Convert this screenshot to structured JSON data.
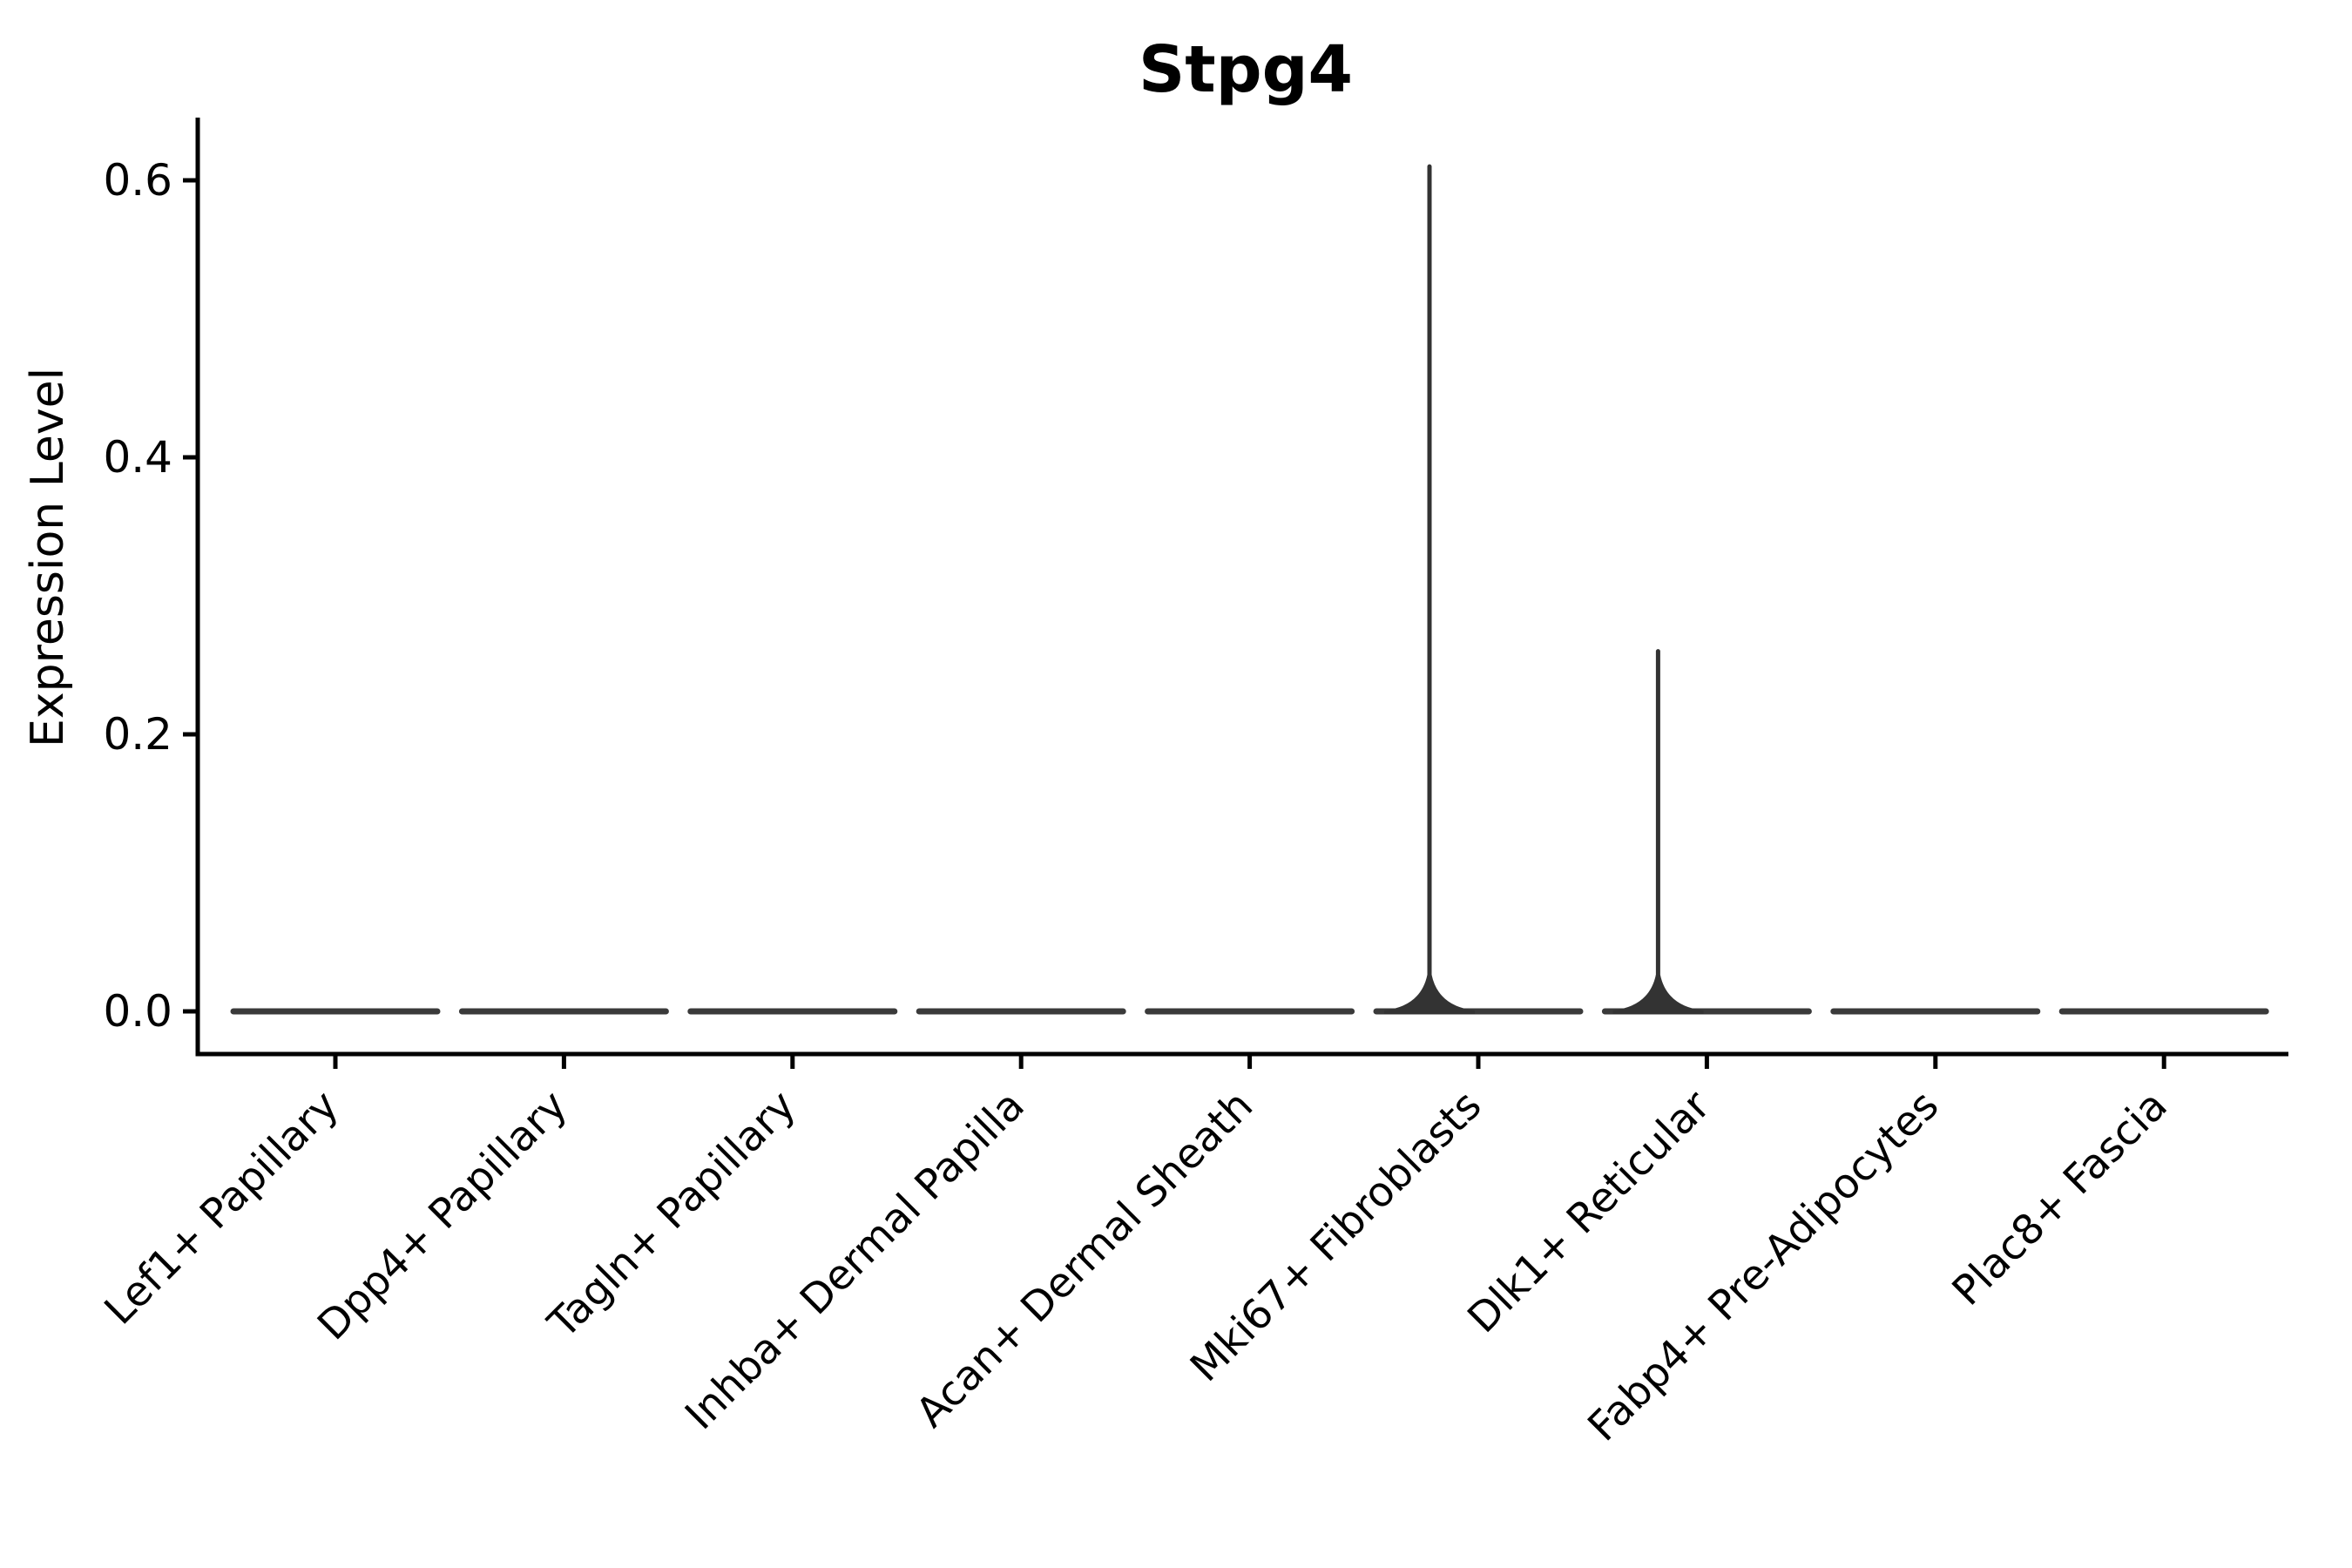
{
  "chart_data": {
    "type": "violin",
    "title": "Stpg4",
    "ylabel": "Expression Level",
    "xlabel": "",
    "legend": "none",
    "grid": false,
    "background": "#ffffff",
    "ylim": [
      0,
      0.645
    ],
    "ytick_labels": [
      "0.0",
      "0.2",
      "0.4",
      "0.6"
    ],
    "ytick_values": [
      0.0,
      0.2,
      0.4,
      0.6
    ],
    "categories": [
      "Lef1+ Papillary",
      "Dpp4+ Papillary",
      "Tagln+ Papillary",
      "Inhba+ Dermal Papilla",
      "Acan+ Dermal Sheath",
      "Mki67+ Fibroblasts",
      "Dlk1+ Reticular",
      "Fabp4+ Pre-Adipocytes",
      "Plac8+ Fascia"
    ],
    "violins": [
      {
        "category": "Lef1+ Papillary",
        "median": 0.0,
        "max": 0.0
      },
      {
        "category": "Dpp4+ Papillary",
        "median": 0.0,
        "max": 0.0
      },
      {
        "category": "Tagln+ Papillary",
        "median": 0.0,
        "max": 0.0
      },
      {
        "category": "Inhba+ Dermal Papilla",
        "median": 0.0,
        "max": 0.0
      },
      {
        "category": "Acan+ Dermal Sheath",
        "median": 0.0,
        "max": 0.0
      },
      {
        "category": "Mki67+ Fibroblasts",
        "median": 0.0,
        "max": 0.61
      },
      {
        "category": "Dlk1+ Reticular",
        "median": 0.0,
        "max": 0.26
      },
      {
        "category": "Fabp4+ Pre-Adipocytes",
        "median": 0.0,
        "max": 0.0
      },
      {
        "category": "Plac8+ Fascia",
        "median": 0.0,
        "max": 0.0
      }
    ],
    "colors": {
      "axis": "#000000",
      "text": "#000000",
      "violin_body": "#3a3a3a",
      "spike": "#333333",
      "background": "#ffffff"
    }
  }
}
